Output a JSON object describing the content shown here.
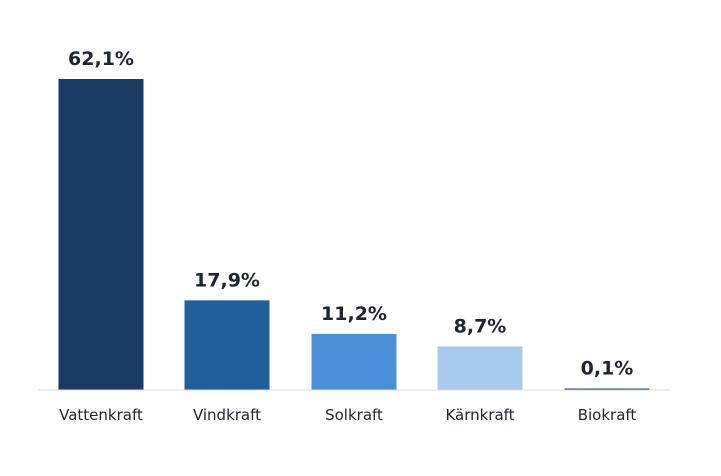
{
  "chart_data": {
    "type": "bar",
    "categories": [
      "Vattenkraft",
      "Vindkraft",
      "Solkraft",
      "Kärnkraft",
      "Biokraft"
    ],
    "values": [
      62.1,
      17.9,
      11.2,
      8.7,
      0.1
    ],
    "value_labels": [
      "62,1%",
      "17,9%",
      "11,2%",
      "8,7%",
      "0,1%"
    ],
    "title": "",
    "xlabel": "",
    "ylabel": "",
    "ylim": [
      0,
      62.1
    ],
    "grid": false,
    "legend": "none",
    "colors": [
      "#1a3c64",
      "#215f9a",
      "#4a90d9",
      "#a8cbec",
      "#1a3c64"
    ],
    "axis_color": "#d9d9d9"
  }
}
